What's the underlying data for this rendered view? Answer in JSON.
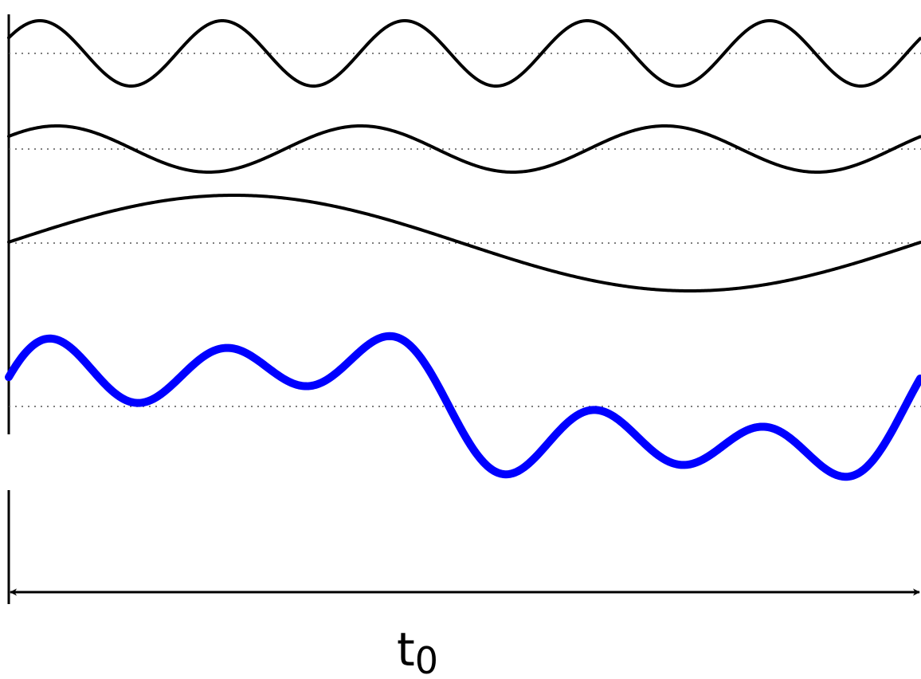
{
  "colors": {
    "component_waves": "#000000",
    "sum_wave": "#0000ff"
  },
  "components": [
    {
      "name": "",
      "cycles_over_t0": 5
    },
    {
      "name": "",
      "cycles_over_t0": 3
    },
    {
      "name": "",
      "cycles_over_t0": 1
    }
  ],
  "sum": {
    "description": "",
    "shown": true
  },
  "period": {
    "label_main": "t",
    "label_sub": "0"
  }
}
